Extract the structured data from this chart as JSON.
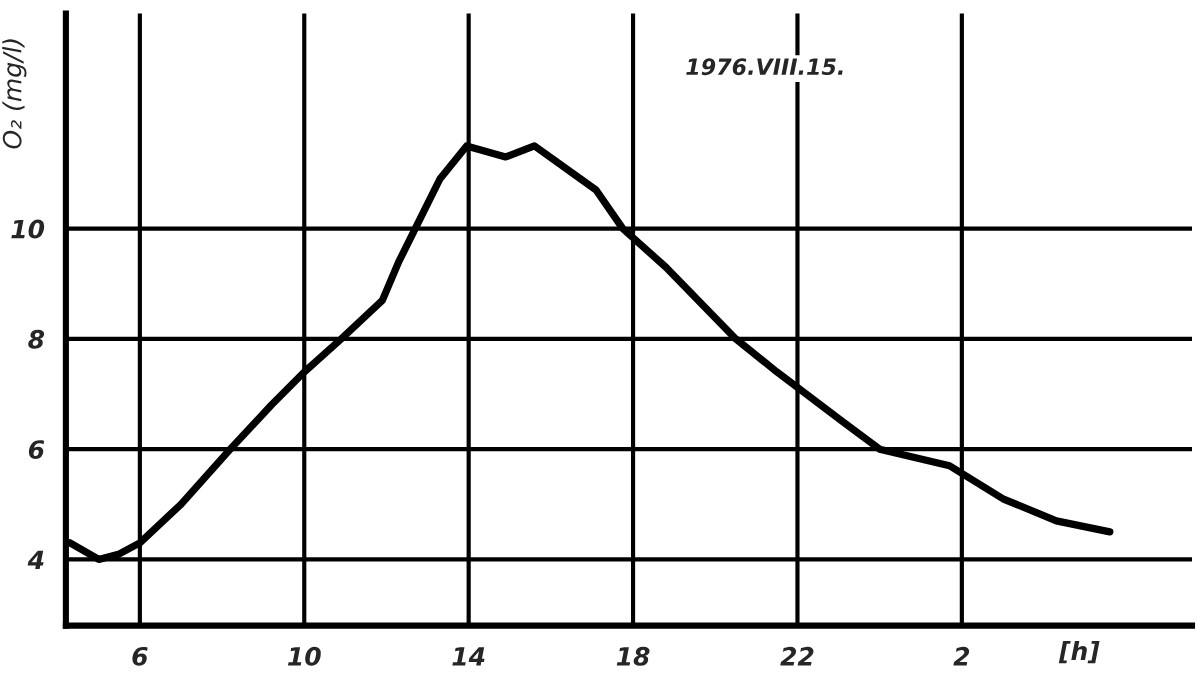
{
  "chart_data": {
    "type": "line",
    "ylabel": "O₂ (mg/l)",
    "xlabel": "[h]",
    "annotations": [
      "1976.VIII.15."
    ],
    "x": [
      "1976-08-15T04:18",
      "1976-08-15T05:00",
      "1976-08-15T05:30",
      "1976-08-15T06:00",
      "1976-08-15T07:00",
      "1976-08-15T08:12",
      "1976-08-15T09:12",
      "1976-08-15T10:00",
      "1976-08-15T10:54",
      "1976-08-15T11:54",
      "1976-08-15T12:18",
      "1976-08-15T12:42",
      "1976-08-15T13:18",
      "1976-08-15T13:57",
      "1976-08-15T14:54",
      "1976-08-15T15:36",
      "1976-08-15T17:06",
      "1976-08-15T17:45",
      "1976-08-15T18:48",
      "1976-08-15T20:30",
      "1976-08-15T21:30",
      "1976-08-15T23:06",
      "1976-08-16T00:00",
      "1976-08-16T01:42",
      "1976-08-16T03:00",
      "1976-08-16T04:18",
      "1976-08-16T05:36"
    ],
    "series": [
      {
        "color": "#000000",
        "values": [
          4.3,
          4.0,
          4.1,
          4.3,
          5.0,
          6.0,
          6.8,
          7.4,
          8.0,
          8.7,
          9.4,
          10.0,
          10.9,
          11.5,
          11.3,
          11.5,
          10.7,
          10.0,
          9.3,
          8.0,
          7.4,
          6.5,
          6.0,
          5.7,
          5.1,
          4.7,
          4.5
        ]
      }
    ],
    "xlim": [
      "1976-08-15T04:12",
      "1976-08-16T07:36"
    ],
    "ylim": [
      2.8,
      13.9
    ],
    "xticks": [
      {
        "value": "1976-08-15T06:00",
        "label": "6"
      },
      {
        "value": "1976-08-15T10:00",
        "label": "10"
      },
      {
        "value": "1976-08-15T14:00",
        "label": "14"
      },
      {
        "value": "1976-08-15T18:00",
        "label": "18"
      },
      {
        "value": "1976-08-15T22:00",
        "label": "22"
      },
      {
        "value": "1976-08-16T02:00",
        "label": "2"
      }
    ],
    "yticks": [
      4,
      6,
      8,
      10
    ],
    "grid": true,
    "marker": "none",
    "line_style": "solid"
  }
}
